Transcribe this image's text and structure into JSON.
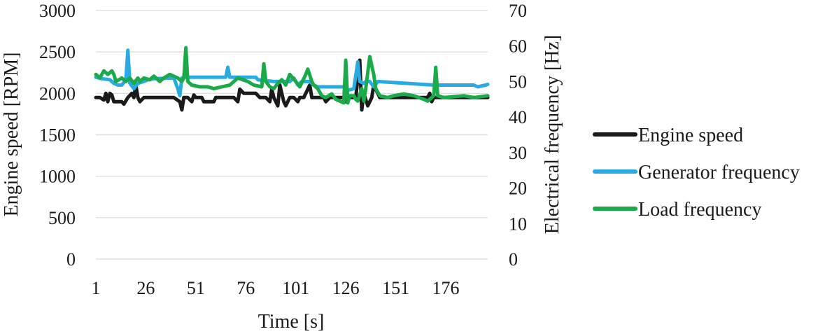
{
  "chart_data": {
    "type": "line",
    "xlabel": "Time [s]",
    "ylabel_left": "Engine speed [RPM]",
    "ylabel_right": "Electrical frequency [Hz]",
    "x_tick_labels": [
      "1",
      "26",
      "51",
      "76",
      "101",
      "126",
      "151",
      "176"
    ],
    "x_range": [
      1,
      197
    ],
    "ylim_left": [
      0,
      3000
    ],
    "ylim_right": [
      0,
      70
    ],
    "y_ticks_left": [
      "0",
      "500",
      "1000",
      "1500",
      "2000",
      "2500",
      "3000"
    ],
    "y_ticks_right": [
      "0",
      "10",
      "20",
      "30",
      "40",
      "50",
      "60",
      "70"
    ],
    "grid": "horizontal",
    "legend_position": "right",
    "series": [
      {
        "name": "Engine speed",
        "axis": "left",
        "color": "#1a1a1a",
        "points": [
          [
            1,
            1950
          ],
          [
            3,
            1950
          ],
          [
            5,
            1920
          ],
          [
            6,
            2000
          ],
          [
            7,
            1900
          ],
          [
            8,
            2000
          ],
          [
            9,
            1980
          ],
          [
            10,
            1900
          ],
          [
            14,
            1900
          ],
          [
            15,
            1870
          ],
          [
            17,
            1950
          ],
          [
            19,
            2000
          ],
          [
            20,
            1950
          ],
          [
            21,
            2100
          ],
          [
            22,
            1950
          ],
          [
            23,
            1900
          ],
          [
            25,
            1950
          ],
          [
            40,
            1950
          ],
          [
            43,
            1900
          ],
          [
            44,
            1800
          ],
          [
            45,
            1950
          ],
          [
            47,
            1950
          ],
          [
            49,
            1900
          ],
          [
            50,
            1980
          ],
          [
            51,
            1950
          ],
          [
            54,
            1950
          ],
          [
            55,
            1900
          ],
          [
            60,
            1900
          ],
          [
            61,
            1950
          ],
          [
            70,
            1950
          ],
          [
            72,
            1900
          ],
          [
            73,
            2050
          ],
          [
            75,
            2000
          ],
          [
            81,
            2000
          ],
          [
            83,
            1950
          ],
          [
            86,
            1950
          ],
          [
            88,
            1900
          ],
          [
            89,
            2050
          ],
          [
            90,
            1950
          ],
          [
            91,
            1900
          ],
          [
            92,
            1850
          ],
          [
            93,
            2100
          ],
          [
            94,
            2000
          ],
          [
            95,
            1900
          ],
          [
            96,
            1850
          ],
          [
            98,
            1950
          ],
          [
            100,
            1950
          ],
          [
            102,
            1900
          ],
          [
            103,
            1950
          ],
          [
            105,
            1950
          ],
          [
            108,
            2100
          ],
          [
            109,
            1950
          ],
          [
            111,
            1950
          ],
          [
            115,
            1950
          ],
          [
            116,
            1900
          ],
          [
            118,
            1950
          ],
          [
            125,
            1950
          ],
          [
            126,
            1900
          ],
          [
            127,
            1950
          ],
          [
            131,
            1950
          ],
          [
            133,
            2400
          ],
          [
            134,
            1800
          ],
          [
            135,
            2000
          ],
          [
            137,
            1850
          ],
          [
            139,
            1950
          ],
          [
            140,
            2100
          ],
          [
            142,
            2000
          ],
          [
            143,
            1950
          ],
          [
            165,
            1950
          ],
          [
            167,
            1950
          ],
          [
            168,
            2000
          ],
          [
            169,
            1900
          ],
          [
            170,
            1950
          ],
          [
            197,
            1950
          ]
        ]
      },
      {
        "name": "Generator frequency",
        "axis": "right",
        "color": "#29abe2",
        "points": [
          [
            1,
            51.2
          ],
          [
            4,
            50.8
          ],
          [
            8,
            50.5
          ],
          [
            10,
            49.5
          ],
          [
            12,
            49
          ],
          [
            14,
            49
          ],
          [
            16,
            50.5
          ],
          [
            17,
            58.8
          ],
          [
            18,
            49.5
          ],
          [
            20,
            48
          ],
          [
            22,
            49.5
          ],
          [
            25,
            50
          ],
          [
            27,
            50.5
          ],
          [
            30,
            50.8
          ],
          [
            40,
            51
          ],
          [
            42,
            48
          ],
          [
            43,
            46
          ],
          [
            44,
            51
          ],
          [
            45,
            51.2
          ],
          [
            66,
            51.2
          ],
          [
            67,
            54
          ],
          [
            68,
            51.2
          ],
          [
            81,
            51.2
          ],
          [
            82,
            50.5
          ],
          [
            90,
            50
          ],
          [
            98,
            50
          ],
          [
            100,
            51
          ],
          [
            102,
            49
          ],
          [
            104,
            50
          ],
          [
            108,
            50
          ],
          [
            110,
            49
          ],
          [
            112,
            48.5
          ],
          [
            125,
            48.5
          ],
          [
            127,
            47.5
          ],
          [
            130,
            48
          ],
          [
            132,
            55.5
          ],
          [
            133,
            50
          ],
          [
            135,
            49.5
          ],
          [
            136,
            50
          ],
          [
            138,
            50
          ],
          [
            140,
            48.5
          ],
          [
            142,
            50
          ],
          [
            170,
            49
          ],
          [
            190,
            49
          ],
          [
            192,
            48.5
          ],
          [
            196,
            49
          ],
          [
            197,
            49.2
          ]
        ]
      },
      {
        "name": "Load frequency",
        "axis": "right",
        "color": "#1aaa4a",
        "points": [
          [
            1,
            52
          ],
          [
            3,
            51
          ],
          [
            5,
            53
          ],
          [
            7,
            52
          ],
          [
            9,
            53
          ],
          [
            10,
            52
          ],
          [
            11,
            50
          ],
          [
            14,
            51
          ],
          [
            16,
            50
          ],
          [
            18,
            51
          ],
          [
            20,
            49.5
          ],
          [
            22,
            51
          ],
          [
            23,
            50
          ],
          [
            25,
            51
          ],
          [
            28,
            50.5
          ],
          [
            30,
            51.5
          ],
          [
            33,
            50
          ],
          [
            35,
            51
          ],
          [
            38,
            52
          ],
          [
            42,
            51
          ],
          [
            44,
            50
          ],
          [
            45,
            51
          ],
          [
            46,
            59.5
          ],
          [
            47,
            50
          ],
          [
            49,
            49
          ],
          [
            53,
            48.5
          ],
          [
            57,
            48.5
          ],
          [
            60,
            48
          ],
          [
            64,
            48.5
          ],
          [
            68,
            49
          ],
          [
            72,
            51
          ],
          [
            77,
            50
          ],
          [
            80,
            49
          ],
          [
            84,
            48.5
          ],
          [
            85,
            55
          ],
          [
            86,
            50
          ],
          [
            88,
            48.5
          ],
          [
            90,
            48
          ],
          [
            92,
            49.5
          ],
          [
            94,
            50.5
          ],
          [
            96,
            49
          ],
          [
            98,
            52
          ],
          [
            101,
            50
          ],
          [
            103,
            48.5
          ],
          [
            106,
            52
          ],
          [
            107,
            53.5
          ],
          [
            109,
            50
          ],
          [
            110,
            49
          ],
          [
            112,
            48
          ],
          [
            114,
            46
          ],
          [
            116,
            45.5
          ],
          [
            119,
            46.5
          ],
          [
            121,
            45
          ],
          [
            123,
            44.5
          ],
          [
            125,
            44
          ],
          [
            126,
            56
          ],
          [
            127,
            44
          ],
          [
            128,
            46
          ],
          [
            130,
            46
          ],
          [
            131,
            45
          ],
          [
            132,
            44.5
          ],
          [
            134,
            48
          ],
          [
            135,
            44.5
          ],
          [
            136,
            48
          ],
          [
            138,
            57
          ],
          [
            140,
            52
          ],
          [
            141,
            48
          ],
          [
            143,
            46
          ],
          [
            147,
            45.5
          ],
          [
            150,
            46
          ],
          [
            155,
            46.5
          ],
          [
            160,
            46
          ],
          [
            165,
            45
          ],
          [
            167,
            44.5
          ],
          [
            170,
            46
          ],
          [
            171,
            54
          ],
          [
            172,
            46
          ],
          [
            175,
            45.5
          ],
          [
            185,
            46
          ],
          [
            190,
            45.5
          ],
          [
            197,
            46
          ]
        ]
      }
    ]
  }
}
